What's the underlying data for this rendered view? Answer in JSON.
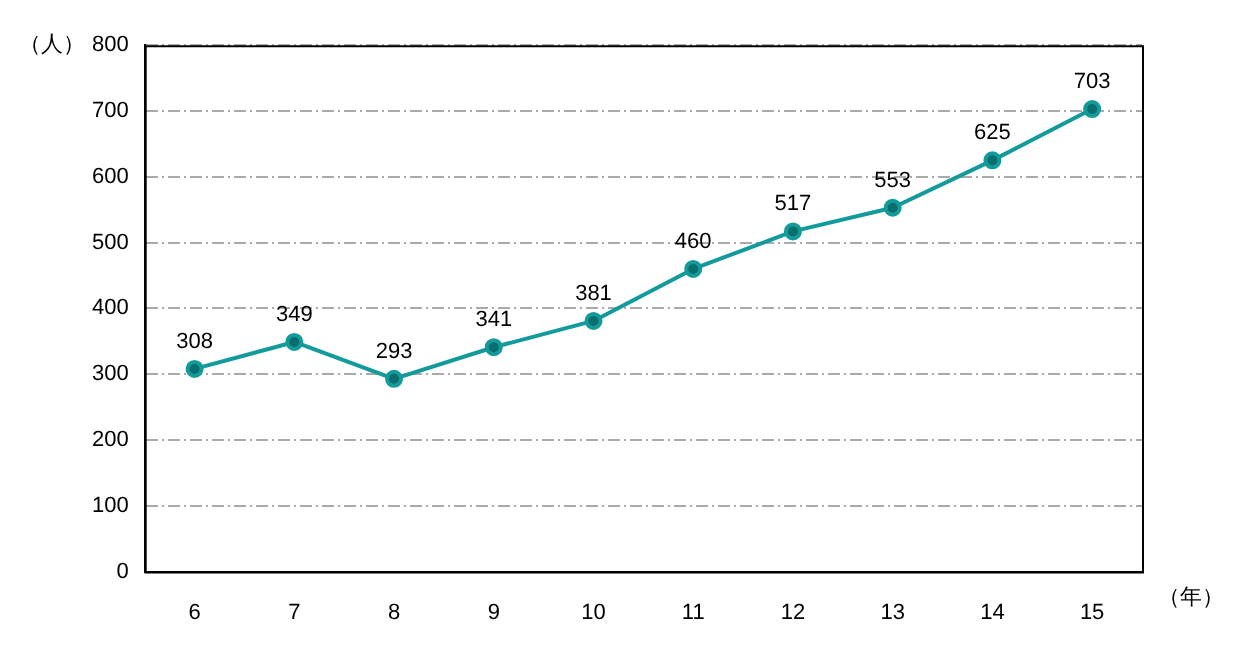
{
  "chart_data": {
    "type": "line",
    "xlabel": "（年）",
    "ylabel": "（人）",
    "categories": [
      "6",
      "7",
      "8",
      "9",
      "10",
      "11",
      "12",
      "13",
      "14",
      "15"
    ],
    "series": [
      {
        "color": "#139a9a",
        "values": [
          308,
          349,
          293,
          341,
          381,
          460,
          517,
          553,
          625,
          703
        ]
      }
    ],
    "ylim": [
      0,
      800
    ],
    "yticks": [
      0,
      100,
      200,
      300,
      400,
      500,
      600,
      700,
      800
    ],
    "grid": "y",
    "legend": false,
    "marker": "circle",
    "line_style": "solid",
    "data_labels": true
  }
}
